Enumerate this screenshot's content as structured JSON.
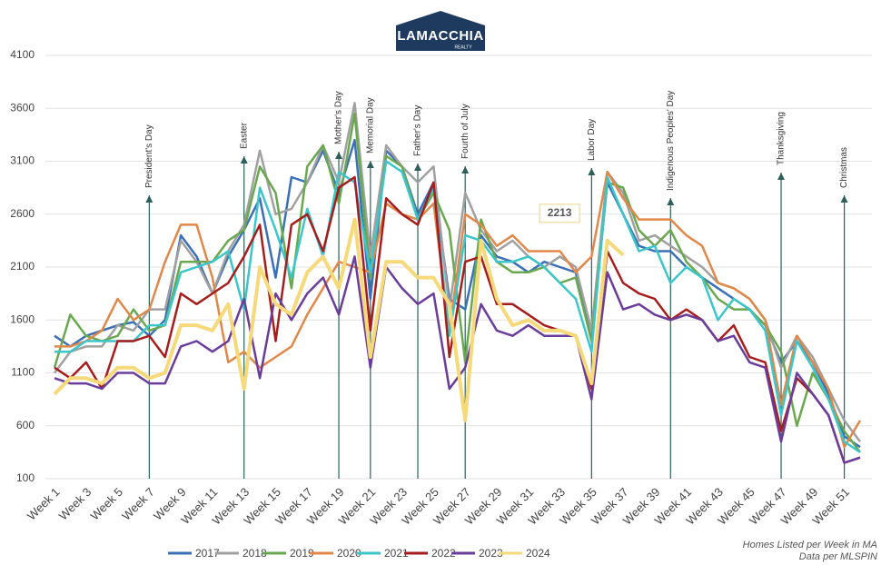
{
  "logo": {
    "name": "LAMACCHIA",
    "sub": "REALTY"
  },
  "chart_data": {
    "type": "line",
    "categories": [
      "Week 1",
      null,
      "Week 3",
      null,
      "Week 5",
      null,
      "Week 7",
      null,
      "Week 9",
      null,
      "Week 11",
      null,
      "Week 13",
      null,
      "Week 15",
      null,
      "Week 17",
      null,
      "Week 19",
      null,
      "Week 21",
      null,
      "Week 23",
      null,
      "Week 25",
      null,
      "Week 27",
      null,
      "Week 29",
      null,
      "Week 31",
      null,
      "Week 33",
      null,
      "Week 35",
      null,
      "Week 37",
      null,
      "Week 39",
      null,
      "Week 41",
      null,
      "Week 43",
      null,
      "Week 45",
      null,
      "Week 47",
      null,
      "Week 49",
      null,
      "Week 51",
      null
    ],
    "series": [
      {
        "name": "2017",
        "color": "#3b6fb6",
        "values": [
          1450,
          1350,
          1450,
          1500,
          1550,
          1580,
          1450,
          1600,
          2400,
          2200,
          1850,
          2200,
          2450,
          2750,
          2000,
          2950,
          2900,
          3200,
          2800,
          3300,
          1800,
          3200,
          3050,
          2600,
          2900,
          1800,
          1700,
          2400,
          2200,
          2150,
          2050,
          2150,
          2100,
          2050,
          1400,
          2900,
          2600,
          2300,
          2250,
          2250,
          2100,
          2000,
          1900,
          1800,
          1700,
          1550,
          1200,
          1400,
          1200,
          900,
          500,
          400
        ]
      },
      {
        "name": "2018",
        "color": "#a0a0a0",
        "values": [
          1100,
          1300,
          1350,
          1350,
          1550,
          1500,
          1700,
          1700,
          2350,
          2150,
          1850,
          2250,
          2500,
          3200,
          2600,
          2650,
          2900,
          3250,
          2900,
          3650,
          2200,
          3250,
          3050,
          2900,
          3050,
          1700,
          2800,
          2450,
          2250,
          2350,
          2200,
          2100,
          2200,
          2100,
          1500,
          3000,
          2800,
          2350,
          2400,
          2300,
          2200,
          2100,
          1950,
          1900,
          1800,
          1600,
          1150,
          1450,
          1250,
          950,
          650,
          450
        ]
      },
      {
        "name": "2019",
        "color": "#6aa84f",
        "values": [
          1150,
          1650,
          1450,
          1400,
          1450,
          1700,
          1500,
          1550,
          2150,
          2150,
          2150,
          2350,
          2450,
          3050,
          2800,
          1900,
          3050,
          3250,
          2700,
          3550,
          2000,
          3150,
          3050,
          2550,
          2800,
          2450,
          1200,
          2550,
          2150,
          2050,
          2050,
          2100,
          1950,
          2000,
          1400,
          2900,
          2850,
          2450,
          2300,
          2450,
          2150,
          2000,
          1800,
          1700,
          1700,
          1550,
          1300,
          600,
          1100,
          850,
          550,
          350
        ]
      },
      {
        "name": "2020",
        "color": "#e0884a",
        "values": [
          1350,
          1350,
          1400,
          1500,
          1800,
          1600,
          1700,
          2150,
          2500,
          2500,
          2000,
          1200,
          1300,
          1150,
          1250,
          1350,
          1650,
          1900,
          2150,
          2100,
          2050,
          2700,
          2600,
          2550,
          2700,
          1500,
          2600,
          2500,
          2300,
          2400,
          2250,
          2250,
          2250,
          2050,
          2200,
          3000,
          2750,
          2550,
          2550,
          2550,
          2400,
          2300,
          1950,
          1900,
          1800,
          1600,
          800,
          1450,
          1200,
          950,
          400,
          650
        ]
      },
      {
        "name": "2021",
        "color": "#3cc6c9",
        "values": [
          1300,
          1300,
          1400,
          1400,
          1400,
          1400,
          1550,
          1550,
          2050,
          2100,
          2150,
          2250,
          1700,
          2850,
          2450,
          2000,
          2650,
          2200,
          3000,
          2900,
          2050,
          3100,
          3000,
          2550,
          2850,
          1450,
          2400,
          2350,
          2150,
          2150,
          2200,
          2100,
          1950,
          1800,
          1300,
          2950,
          2600,
          2250,
          2300,
          1950,
          2100,
          2000,
          1600,
          1800,
          1700,
          1500,
          700,
          1400,
          1150,
          850,
          450,
          350
        ]
      },
      {
        "name": "2022",
        "color": "#a51d1d",
        "values": [
          1150,
          1050,
          1200,
          950,
          1400,
          1400,
          1450,
          1250,
          1850,
          1750,
          1850,
          1950,
          2200,
          2500,
          1400,
          2500,
          2600,
          2250,
          2850,
          2950,
          1500,
          2750,
          2600,
          2500,
          2900,
          1250,
          2150,
          2200,
          1750,
          1750,
          1650,
          1550,
          1500,
          1450,
          950,
          2250,
          1950,
          1850,
          1800,
          1600,
          1700,
          1600,
          1400,
          1550,
          1250,
          1200,
          550,
          1050,
          900,
          700,
          250,
          300
        ]
      },
      {
        "name": "2023",
        "color": "#6a3d9a",
        "values": [
          1050,
          1000,
          1000,
          950,
          1100,
          1100,
          1000,
          1000,
          1350,
          1400,
          1300,
          1400,
          1800,
          1050,
          1850,
          1600,
          1850,
          2000,
          1650,
          2200,
          1150,
          2100,
          1900,
          1750,
          1850,
          950,
          1150,
          1750,
          1500,
          1450,
          1550,
          1450,
          1450,
          1450,
          850,
          2050,
          1700,
          1750,
          1650,
          1600,
          1650,
          1600,
          1400,
          1450,
          1200,
          1150,
          450,
          1100,
          900,
          700,
          250,
          300
        ]
      },
      {
        "name": "2024",
        "color": "#f5d97a",
        "values": [
          900,
          1050,
          1050,
          1000,
          1150,
          1150,
          1050,
          1100,
          1550,
          1550,
          1500,
          1750,
          950,
          2100,
          1750,
          1650,
          2050,
          2200,
          1900,
          2550,
          1250,
          2150,
          2150,
          2000,
          2000,
          1750,
          650,
          2350,
          1800,
          1550,
          1600,
          1500,
          1500,
          1450,
          1000,
          2350,
          2213,
          null,
          null,
          null,
          null,
          null,
          null,
          null,
          null,
          null,
          null,
          null,
          null,
          null,
          null,
          null
        ]
      }
    ],
    "ylim": [
      100,
      4100
    ],
    "yticks": [
      100,
      600,
      1100,
      1600,
      2100,
      2600,
      3100,
      3600,
      4100
    ],
    "grid": true,
    "legend": "bottom",
    "annotations": [
      "President's Day",
      "Easter",
      "Mother's Day",
      "Memorial Day",
      "Father's Day",
      "Fourth of July",
      "Labor Day",
      "Indigenous Peoples' Day",
      "Thanksgiving",
      "Christmas"
    ],
    "notes": [
      "Homes Listed per Week in MA",
      "Data per MLSPIN"
    ]
  }
}
